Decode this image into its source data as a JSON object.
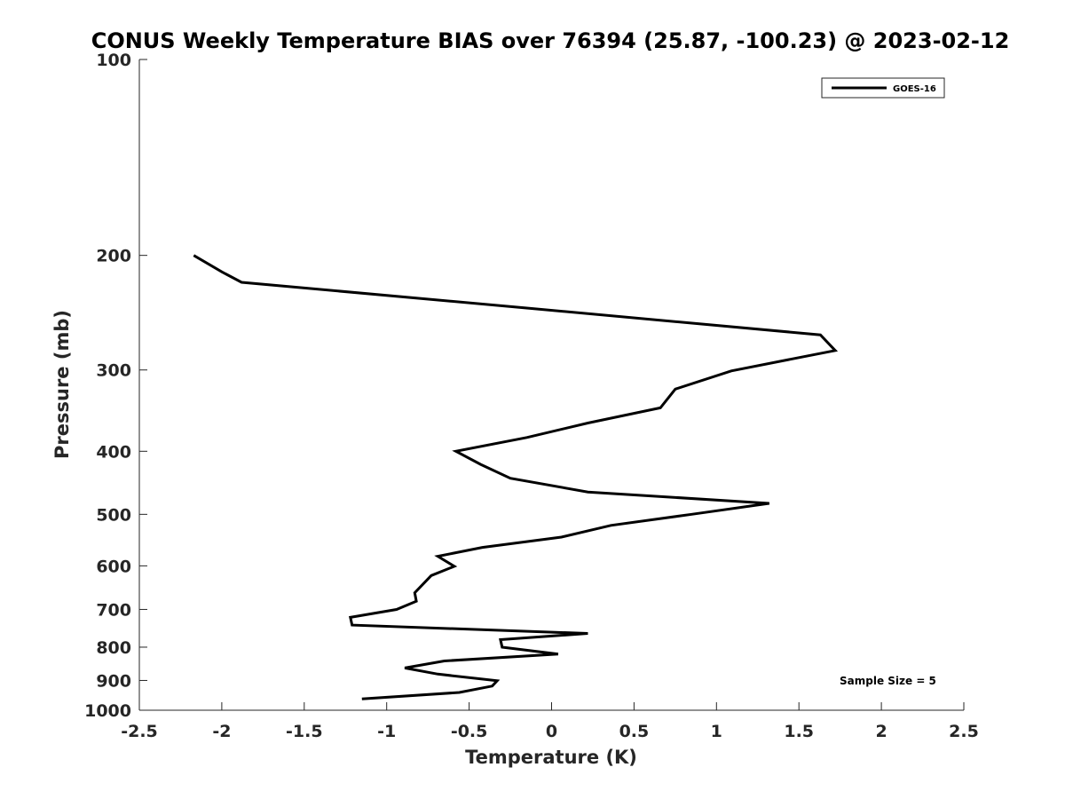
{
  "chart_data": {
    "type": "line",
    "title": "CONUS Weekly Temperature BIAS over 76394 (25.87, -100.23) @ 2023-02-12",
    "xlabel": "Temperature (K)",
    "ylabel": "Pressure (mb)",
    "xlim": [
      -2.5,
      2.5
    ],
    "ylim": [
      1000,
      100
    ],
    "yscale": "log",
    "x_ticks": [
      -2.5,
      -2,
      -1.5,
      -1,
      -0.5,
      0,
      0.5,
      1,
      1.5,
      2,
      2.5
    ],
    "x_tick_labels": [
      "-2.5",
      "-2",
      "-1.5",
      "-1",
      "-0.5",
      "0",
      "0.5",
      "1",
      "1.5",
      "2",
      "2.5"
    ],
    "y_ticks": [
      100,
      200,
      300,
      400,
      500,
      600,
      700,
      800,
      900,
      1000
    ],
    "y_tick_labels": [
      "100",
      "200",
      "300",
      "400",
      "500",
      "600",
      "700",
      "800",
      "900",
      "1000"
    ],
    "grid": false,
    "legend_position": "top-right",
    "annotation": "Sample Size = 5",
    "series": [
      {
        "name": "GOES-16",
        "color": "#000000",
        "points": [
          {
            "t": -2.17,
            "p": 200
          },
          {
            "t": -2.0,
            "p": 212
          },
          {
            "t": -1.88,
            "p": 220
          },
          {
            "t": -0.15,
            "p": 241
          },
          {
            "t": 1.63,
            "p": 265
          },
          {
            "t": 1.72,
            "p": 280
          },
          {
            "t": 1.09,
            "p": 301
          },
          {
            "t": 0.75,
            "p": 321
          },
          {
            "t": 0.66,
            "p": 343
          },
          {
            "t": 0.22,
            "p": 362
          },
          {
            "t": -0.15,
            "p": 381
          },
          {
            "t": -0.58,
            "p": 400
          },
          {
            "t": -0.43,
            "p": 419
          },
          {
            "t": -0.25,
            "p": 440
          },
          {
            "t": 0.22,
            "p": 462
          },
          {
            "t": 1.32,
            "p": 481
          },
          {
            "t": 0.85,
            "p": 500
          },
          {
            "t": 0.36,
            "p": 520
          },
          {
            "t": 0.06,
            "p": 542
          },
          {
            "t": -0.42,
            "p": 562
          },
          {
            "t": -0.69,
            "p": 580
          },
          {
            "t": -0.59,
            "p": 601
          },
          {
            "t": -0.73,
            "p": 621
          },
          {
            "t": -0.83,
            "p": 660
          },
          {
            "t": -0.82,
            "p": 680
          },
          {
            "t": -0.94,
            "p": 700
          },
          {
            "t": -1.22,
            "p": 720
          },
          {
            "t": -1.21,
            "p": 740
          },
          {
            "t": 0.22,
            "p": 762
          },
          {
            "t": -0.31,
            "p": 779
          },
          {
            "t": -0.3,
            "p": 800
          },
          {
            "t": 0.04,
            "p": 820
          },
          {
            "t": -0.65,
            "p": 840
          },
          {
            "t": -0.89,
            "p": 861
          },
          {
            "t": -0.69,
            "p": 880
          },
          {
            "t": -0.33,
            "p": 901
          },
          {
            "t": -0.36,
            "p": 918
          },
          {
            "t": -0.56,
            "p": 939
          },
          {
            "t": -1.15,
            "p": 961
          }
        ]
      }
    ]
  }
}
